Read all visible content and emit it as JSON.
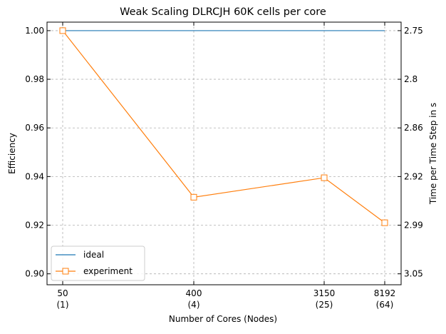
{
  "chart_data": {
    "type": "line",
    "title": "Weak Scaling DLRCJH 60K cells per core",
    "xlabel": "Number of Cores (Nodes)",
    "ylabel": "Efficiency",
    "y2label": "Time per Time Step in s",
    "x_ticks": [
      {
        "line1": "50",
        "line2": "(1)"
      },
      {
        "line1": "400",
        "line2": "(4)"
      },
      {
        "line1": "3150",
        "line2": "(25)"
      },
      {
        "line1": "8192",
        "line2": "(64)"
      }
    ],
    "y_ticks": [
      "0.90",
      "0.92",
      "0.94",
      "0.96",
      "0.98",
      "1.00"
    ],
    "y_tick_values": [
      0.9,
      0.92,
      0.94,
      0.96,
      0.98,
      1.0
    ],
    "y2_ticks": [
      "3.05",
      "2.99",
      "2.92",
      "2.86",
      "2.8",
      "2.75"
    ],
    "ylim": [
      0.8955,
      1.0035
    ],
    "grid": true,
    "legend_position": "lower-left",
    "series": [
      {
        "name": "ideal",
        "color": "#1f77b4",
        "marker": "none",
        "values": [
          1.0,
          1.0,
          1.0,
          1.0
        ]
      },
      {
        "name": "experiment",
        "color": "#ff7f0e",
        "marker": "square",
        "values": [
          1.0,
          0.9315,
          0.9395,
          0.921
        ]
      }
    ]
  }
}
